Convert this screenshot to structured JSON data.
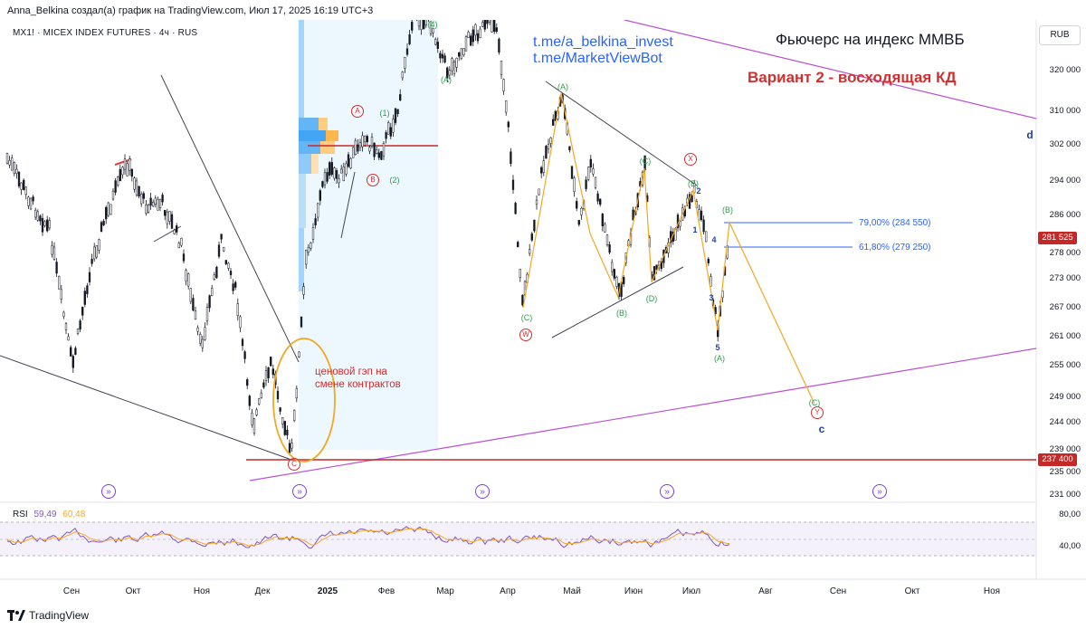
{
  "header": {
    "text": "Anna_Belkina создал(а) график на TradingView.com, Июл 17, 2025 16:19 UTC+3"
  },
  "symbol": {
    "text": "MX1! · MICEX INDEX FUTURES · 4ч · RUS"
  },
  "currency_button": "RUB",
  "annotations": {
    "title": "Фьючерс на индекс ММВБ",
    "variant": "Вариант 2 - восходящая КД",
    "link1": "t.me/a_belkina_invest",
    "link2": "t.me/MarketViewBot",
    "gap_note_line1": "ценовой гэп на",
    "gap_note_line2": "смене контрактов",
    "fib_79": "79,00% (284 550)",
    "fib_618": "61,80% (279 250)"
  },
  "price_axis": [
    "320 000",
    "310 000",
    "302 000",
    "294 000",
    "286 000",
    "278 000",
    "273 000",
    "267 000",
    "261 000",
    "255 000",
    "249 000",
    "244 000",
    "239 000",
    "235 000",
    "231 000"
  ],
  "price_tags": {
    "current": "281 525",
    "level": "237 400"
  },
  "time_axis": [
    "Сен",
    "Окт",
    "Ноя",
    "Дек",
    "2025",
    "Фев",
    "Мар",
    "Апр",
    "Май",
    "Июн",
    "Июл",
    "Авг",
    "Сен",
    "Окт",
    "Ноя"
  ],
  "rsi": {
    "label": "RSI",
    "value1": "59,49",
    "value2": "60,48",
    "axis_top": "80,00",
    "axis_mid": "40,00",
    "color1": "#7e57c2",
    "color2": "#f9a825"
  },
  "wave_labels": {
    "a_red": "A",
    "b_red": "B",
    "c_red": "C",
    "w_red": "W",
    "x_red": "X",
    "y_red": "Y",
    "w1": "(1)",
    "w2": "(2)",
    "w4": "(4)",
    "wa_top": "(A)",
    "wa": "(A)",
    "wc": "(C)",
    "wb": "(B)",
    "wc2": "(C)",
    "wd": "(D)",
    "we": "(E)",
    "wa2": "(A)",
    "wb2": "(B)",
    "wc3": "(C)",
    "n1": "1",
    "n2": "2",
    "n3": "3",
    "n4": "4",
    "n5": "5",
    "lc": "c",
    "ld": "d"
  },
  "footer": {
    "brand": "TradingView"
  },
  "colors": {
    "up": "#131722",
    "red_line": "#c62828",
    "orange": "#f5a623",
    "violet": "#b84fd6",
    "blue": "#2962ff",
    "green": "#2e9d4b"
  }
}
